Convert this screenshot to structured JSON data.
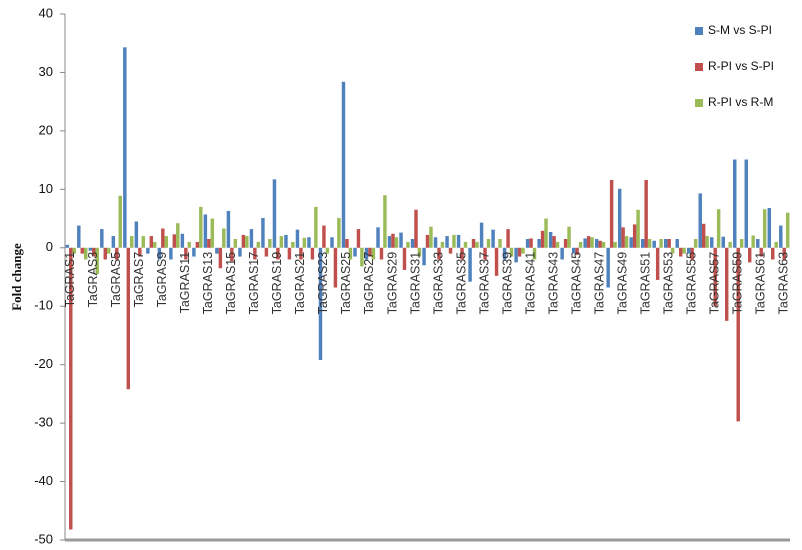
{
  "chart_data": {
    "type": "bar",
    "ylabel": "Fold change",
    "categories": [
      "TaGRAS1",
      null,
      "TaGRAS3",
      null,
      "TaGRAS5",
      null,
      "TaGRAS7",
      null,
      "TaGRAS9",
      null,
      "TaGRAS11",
      null,
      "TaGRAS13",
      null,
      "TaGRAS15",
      null,
      "TaGRAS17",
      null,
      "TaGRAS19",
      null,
      "TaGRAS21",
      null,
      "TaGRAS23",
      null,
      "TaGRAS25",
      null,
      "TaGRAS27",
      null,
      "TaGRAS29",
      null,
      "TaGRAS31",
      null,
      "TaGRAS33",
      null,
      "TaGRAS35",
      null,
      "TaGRAS37",
      null,
      "TaGRAS39",
      null,
      "TaGRAS41",
      null,
      "TaGRAS43",
      null,
      "TaGRAS45",
      null,
      "TaGRAS47",
      null,
      "TaGRAS49",
      null,
      "TaGRAS51",
      null,
      "TaGRAS53",
      null,
      "TaGRAS55",
      null,
      "TaGRAS57",
      null,
      "TaGRAS59",
      null,
      "TaGRAS61",
      null,
      "TaGRAS63"
    ],
    "series": [
      {
        "name": "S-M vs S-PI",
        "color": "#4f81bd",
        "values": [
          0.5,
          3.8,
          -0.5,
          3.2,
          2,
          34.3,
          4.5,
          -1,
          -2,
          -2,
          2.4,
          -1.5,
          5.7,
          -1,
          6.3,
          -1.5,
          3.2,
          5.1,
          11.7,
          2.2,
          3.1,
          1.8,
          -19.2,
          1.8,
          28.4,
          -1.5,
          -2,
          3.5,
          2,
          2.6,
          1.5,
          -3,
          1.8,
          2,
          2.2,
          -5.8,
          4.3,
          3.1,
          -2,
          -2.5,
          1.5,
          1.5,
          2.7,
          -2,
          -1,
          1.6,
          1.5,
          -6.8,
          10.1,
          1.8,
          1.5,
          1.2,
          1.5,
          1.5,
          -1,
          9.3,
          1.8,
          1.9,
          15.1,
          15.1,
          1.5,
          6.8,
          3.8
        ]
      },
      {
        "name": "R-PI vs S-PI",
        "color": "#c0504d",
        "values": [
          -48.2,
          -1,
          -1.5,
          -2,
          -2,
          -24.2,
          -1.5,
          2,
          3.3,
          2.3,
          -2,
          1,
          1.5,
          -3.5,
          -2.3,
          2.2,
          -2,
          -1.5,
          -2,
          -2,
          -2,
          -2,
          3.8,
          -6.8,
          1.5,
          3.2,
          -1.5,
          -2,
          2.4,
          -3.8,
          6.5,
          2.2,
          -2,
          -1,
          -2,
          1.5,
          -2,
          -4.8,
          3.2,
          -1.5,
          1.6,
          2.9,
          2,
          1.5,
          -1.2,
          2,
          1.2,
          11.6,
          3.5,
          4,
          11.6,
          -5.5,
          1.5,
          -1.5,
          -2,
          4.1,
          -10,
          -12.5,
          -29.7,
          -2.5,
          -1.5,
          -2,
          -2
        ]
      },
      {
        "name": "R-PI vs R-M",
        "color": "#9bbb59",
        "values": [
          -1,
          -2,
          -4.5,
          -1,
          8.9,
          2,
          2,
          1,
          2,
          4.2,
          1,
          7,
          5,
          3.3,
          1.5,
          2,
          1,
          1.5,
          2,
          1,
          1.7,
          7,
          -1,
          5.1,
          -2,
          -3.2,
          -2,
          9,
          1.8,
          1,
          -1.5,
          3.6,
          1,
          2.2,
          1,
          1,
          1.5,
          1.5,
          -1.5,
          -1,
          -2,
          5,
          1,
          3.6,
          1,
          1.8,
          1,
          1,
          2,
          6.5,
          1.5,
          1.5,
          -1,
          -1,
          1.5,
          2,
          6.6,
          1,
          1.5,
          2.1,
          6.6,
          1,
          6
        ]
      }
    ],
    "ylim": [
      -50,
      40
    ],
    "yticks": [
      -50,
      -40,
      -30,
      -20,
      -10,
      0,
      10,
      20,
      30,
      40
    ],
    "legend": "top-right"
  }
}
